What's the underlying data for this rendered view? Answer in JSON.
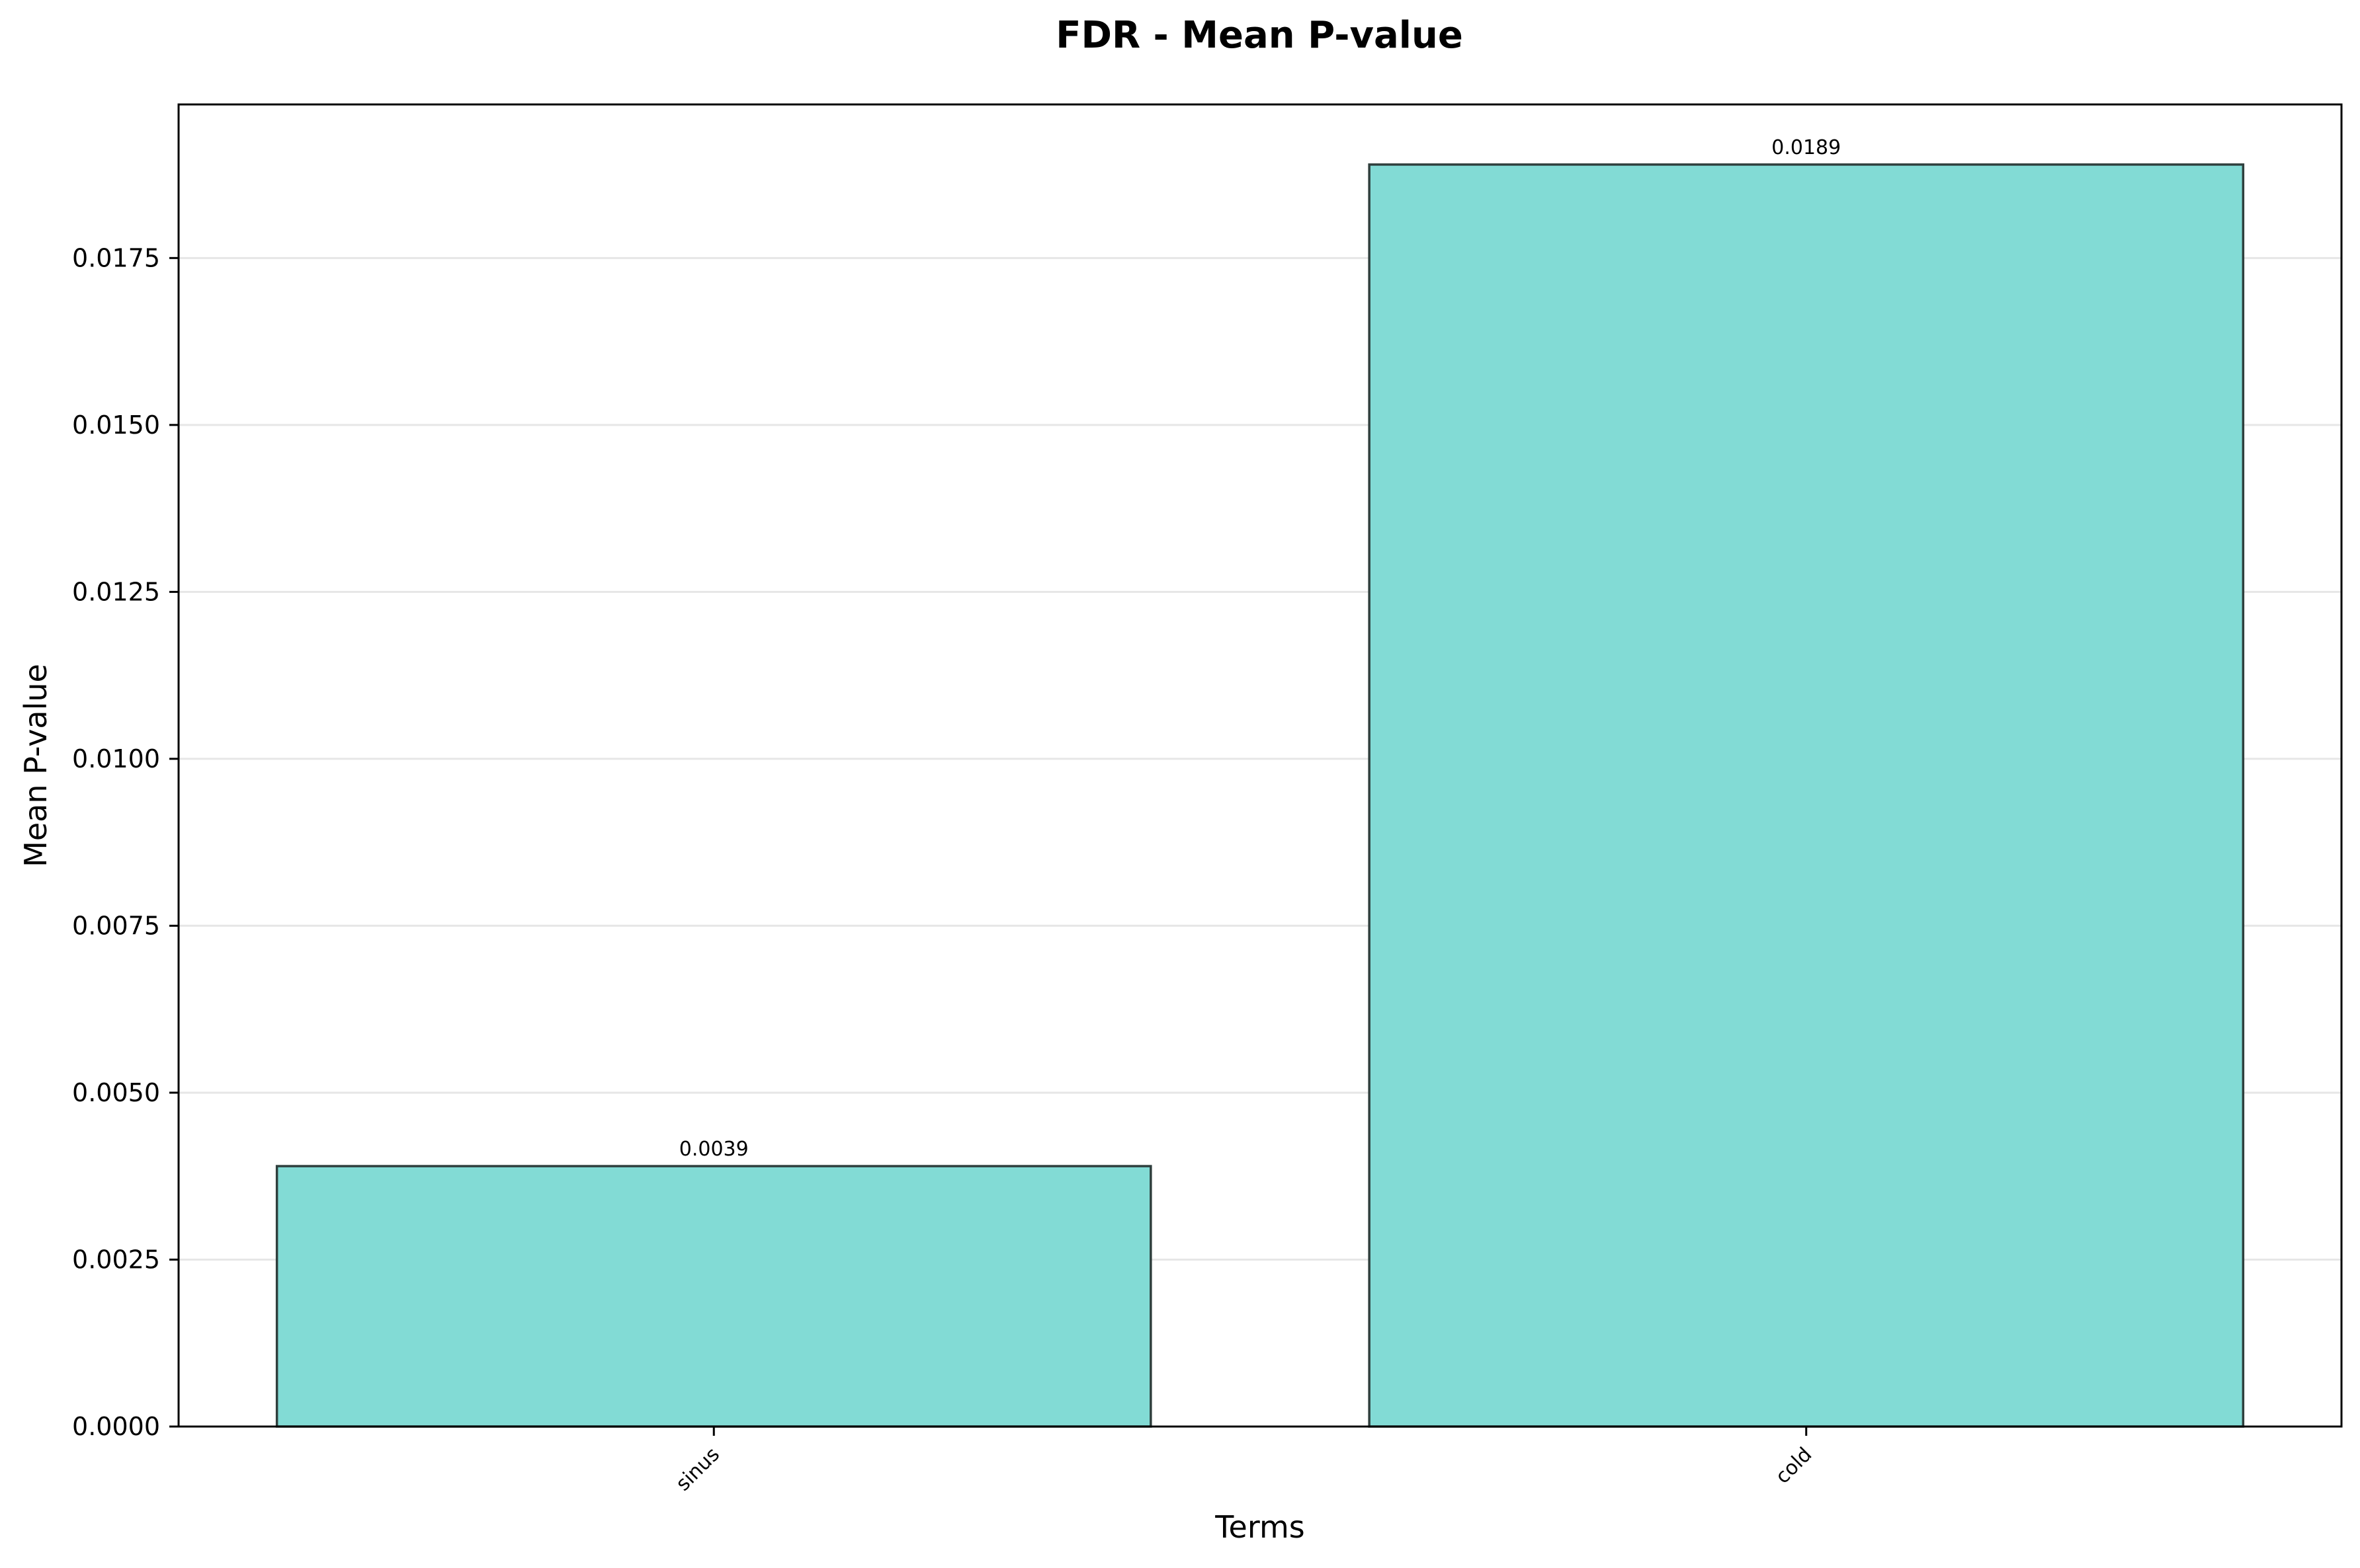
{
  "chart_data": {
    "type": "bar",
    "title": "FDR - Mean P-value",
    "xlabel": "Terms",
    "ylabel": "Mean P-value",
    "categories": [
      "sinus",
      "cold"
    ],
    "values": [
      0.0039,
      0.0189
    ],
    "data_labels": [
      "0.0039",
      "0.0189"
    ],
    "ylim": [
      0,
      0.0198
    ],
    "yticks": [
      0.0,
      0.0025,
      0.005,
      0.0075,
      0.01,
      0.0125,
      0.015,
      0.0175
    ],
    "ytick_labels": [
      "0.0000",
      "0.0025",
      "0.0050",
      "0.0075",
      "0.0100",
      "0.0125",
      "0.0150",
      "0.0175"
    ],
    "grid": "horizontal",
    "legend": "none",
    "bar_color": "#82dbd5",
    "bar_edge_color": "#2f3f3d",
    "grid_color": "#e6e6e6"
  }
}
